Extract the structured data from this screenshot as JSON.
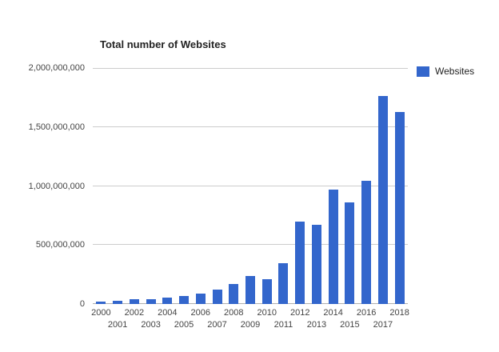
{
  "chart": {
    "title": "Total number of Websites",
    "legend": {
      "label": "Websites",
      "color": "#3366cc"
    }
  },
  "chart_data": {
    "type": "bar",
    "title": "Total number of Websites",
    "xlabel": "",
    "ylabel": "",
    "categories": [
      "2000",
      "2001",
      "2002",
      "2003",
      "2004",
      "2005",
      "2006",
      "2007",
      "2008",
      "2009",
      "2010",
      "2011",
      "2012",
      "2013",
      "2014",
      "2015",
      "2016",
      "2017",
      "2018"
    ],
    "series": [
      {
        "name": "Websites",
        "values": [
          17000000,
          29000000,
          39000000,
          41000000,
          52000000,
          65000000,
          86000000,
          122000000,
          172000000,
          238000000,
          207000000,
          346000000,
          697000000,
          673000000,
          968000000,
          863000000,
          1045000000,
          1766000000,
          1630000000
        ]
      }
    ],
    "ylim": [
      0,
      2000000000
    ],
    "yticks": [
      0,
      500000000,
      1000000000,
      1500000000,
      2000000000
    ],
    "ytick_labels": [
      "0",
      "500,000,000",
      "1,000,000,000",
      "1,500,000,000",
      "2,000,000,000"
    ],
    "bar_color": "#3366cc",
    "grid": true,
    "legend_position": "right",
    "x_label_stagger": true
  }
}
